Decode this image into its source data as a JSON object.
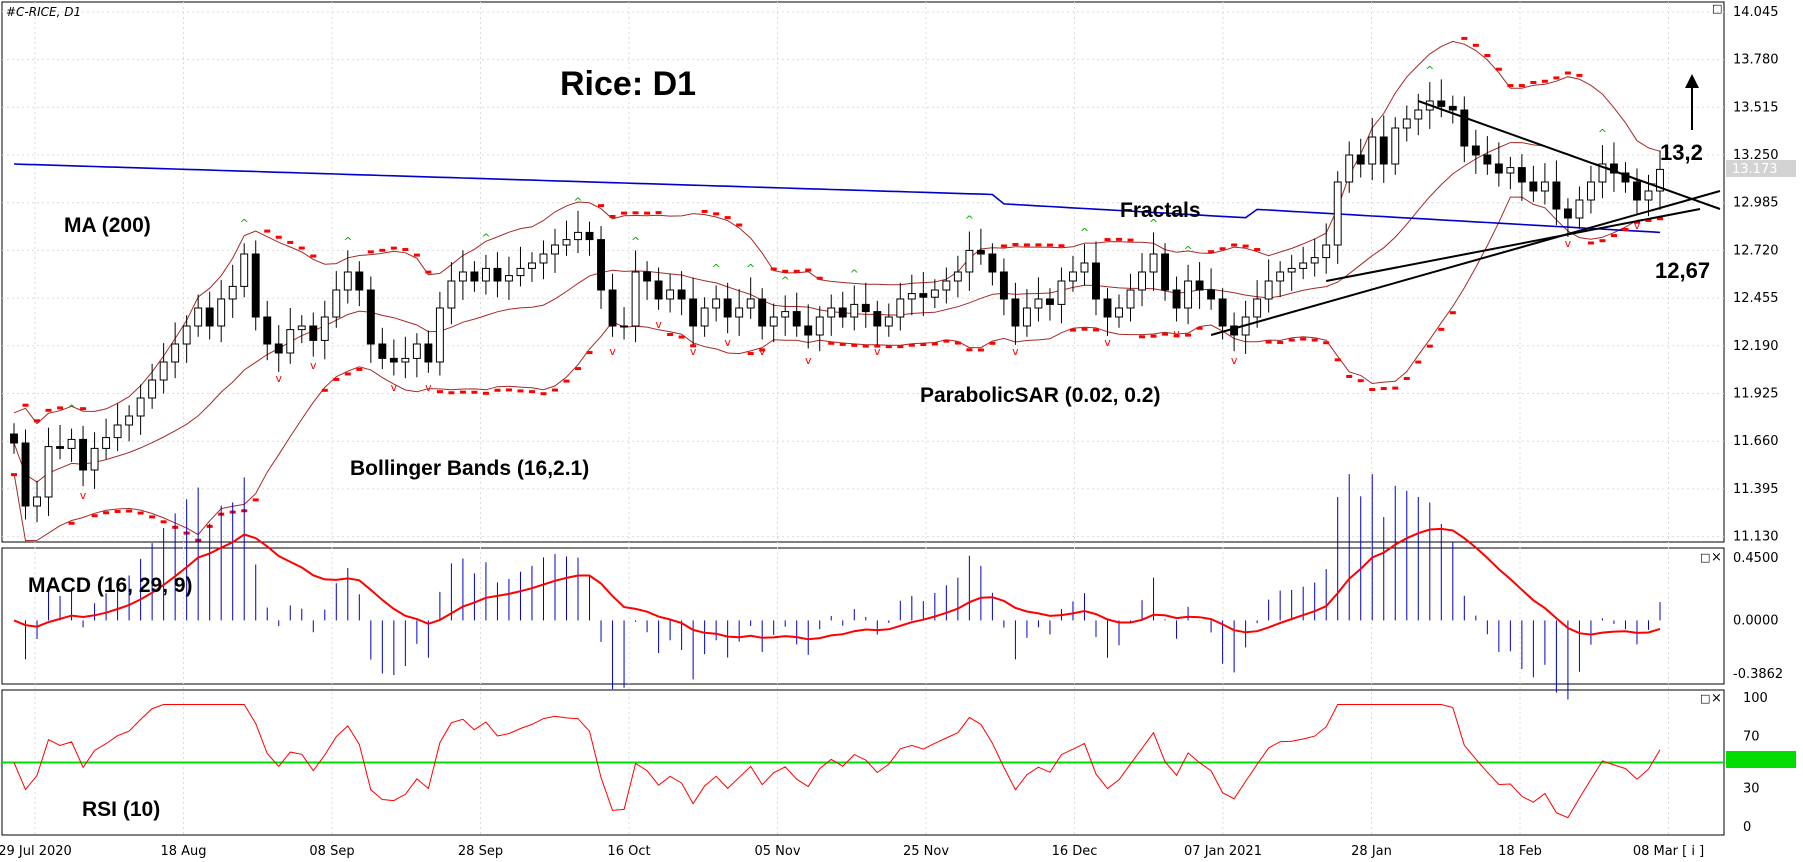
{
  "header": {
    "symbol": "#C-RICE, D1",
    "title": "Rice: D1"
  },
  "annotations": {
    "ma": "MA (200)",
    "fractals": "Fractals",
    "psar": "ParabolicSAR (0.02, 0.2)",
    "bb": "Bollinger Bands (16,2.1)",
    "macd": "MACD (16, 29, 9)",
    "rsi": "RSI (10)",
    "target_up": "13,2",
    "target_down": "12,67"
  },
  "price_axis": {
    "ticks": [
      "14.045",
      "13.780",
      "13.515",
      "13.250",
      "12.985",
      "12.720",
      "12.455",
      "12.190",
      "11.925",
      "11.660",
      "11.395",
      "11.130"
    ],
    "current": "13.173"
  },
  "macd_axis": {
    "ticks": [
      "0.4500",
      "0.0000",
      "-0.3862"
    ]
  },
  "rsi_axis": {
    "ticks": [
      "100",
      "70",
      "50",
      "30",
      "0"
    ],
    "level": 50
  },
  "date_axis": {
    "ticks": [
      "29 Jul 2020",
      "18 Aug",
      "08 Sep",
      "28 Sep",
      "16 Oct",
      "05 Nov",
      "25 Nov",
      "16 Dec",
      "07 Jan 2021",
      "28 Jan",
      "18 Feb",
      "08 Mar [ i ]"
    ]
  },
  "controls": {
    "close_symbol": "×",
    "restore_symbol": "□"
  },
  "colors": {
    "ma": "#0000cc",
    "bb": "#a52a2a",
    "psar": "#ff0000",
    "macd_signal": "#ff0000",
    "macd_hist": "#0000cc",
    "rsi": "#ff0000",
    "rsi_level": "#00dd00",
    "fractal_up": "#00aa00",
    "fractal_down": "#ff0000"
  },
  "chart_data": {
    "type": "candlestick",
    "instrument": "#C-RICE",
    "timeframe": "D1",
    "x_start": "29 Jul 2020",
    "x_end": "08 Mar",
    "ylim": [
      11.1,
      14.1
    ],
    "close": [
      11.65,
      11.3,
      11.35,
      11.63,
      11.62,
      11.67,
      11.5,
      11.62,
      11.68,
      11.75,
      11.8,
      11.9,
      12.0,
      12.1,
      12.2,
      12.3,
      12.4,
      12.3,
      12.45,
      12.52,
      12.7,
      12.35,
      12.2,
      12.15,
      12.28,
      12.3,
      12.22,
      12.35,
      12.5,
      12.6,
      12.5,
      12.2,
      12.12,
      12.1,
      12.12,
      12.2,
      12.1,
      12.4,
      12.55,
      12.6,
      12.55,
      12.62,
      12.55,
      12.58,
      12.62,
      12.65,
      12.7,
      12.75,
      12.78,
      12.82,
      12.78,
      12.5,
      12.3,
      12.3,
      12.6,
      12.55,
      12.45,
      12.5,
      12.45,
      12.3,
      12.4,
      12.45,
      12.35,
      12.4,
      12.45,
      12.3,
      12.35,
      12.38,
      12.3,
      12.25,
      12.35,
      12.4,
      12.35,
      12.42,
      12.38,
      12.3,
      12.35,
      12.45,
      12.48,
      12.46,
      12.5,
      12.55,
      12.6,
      12.72,
      12.7,
      12.6,
      12.45,
      12.3,
      12.4,
      12.45,
      12.42,
      12.55,
      12.6,
      12.65,
      12.45,
      12.35,
      12.4,
      12.5,
      12.6,
      12.7,
      12.5,
      12.4,
      12.55,
      12.5,
      12.45,
      12.3,
      12.25,
      12.35,
      12.45,
      12.55,
      12.6,
      12.62,
      12.65,
      12.68,
      12.75,
      13.1,
      13.25,
      13.2,
      13.35,
      13.2,
      13.4,
      13.45,
      13.5,
      13.55,
      13.52,
      13.5,
      13.3,
      13.25,
      13.2,
      13.15,
      13.18,
      13.1,
      13.05,
      13.1,
      12.95,
      12.9,
      13.0,
      13.1,
      13.2,
      13.15,
      13.1,
      13.0,
      13.05,
      13.17
    ],
    "indicators": {
      "ma200": {
        "start": 13.2,
        "end": 12.82
      },
      "bollinger": {
        "period": 16,
        "deviation": 2.1
      },
      "parabolic_sar": {
        "step": 0.02,
        "max": 0.2
      },
      "macd": {
        "fast": 16,
        "slow": 29,
        "signal": 9,
        "range": [
          -0.3862,
          0.45
        ]
      },
      "rsi": {
        "period": 10,
        "range": [
          0,
          100
        ],
        "level": 50
      }
    },
    "levels": {
      "resistance": 13.2,
      "support": 12.67
    }
  }
}
